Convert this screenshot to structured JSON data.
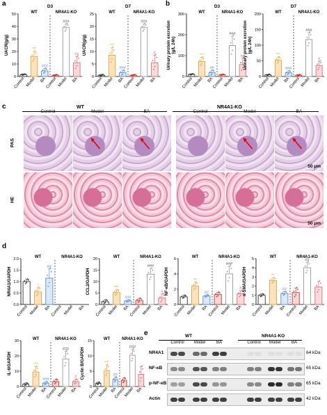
{
  "panels": {
    "a": "a",
    "b": "b",
    "c": "c",
    "d": "d",
    "e": "e"
  },
  "colors": {
    "control": "#333333",
    "model": "#E8A33D",
    "ba": "#5B8FD6",
    "ko_control": "#C0392B",
    "ko_model": "#999999",
    "ko_ba": "#E06C73"
  },
  "chart_data": [
    {
      "id": "a-D3",
      "type": "bar",
      "title": "D3",
      "ylabel": "UACR(g/g)",
      "ylim": [
        0,
        50
      ],
      "yticks": [
        0,
        10,
        20,
        30,
        40,
        50
      ],
      "groups": [
        "WT",
        "NR4A1-KO"
      ],
      "categories": [
        "Control",
        "Model",
        "BA",
        "Control",
        "Model",
        "BA"
      ],
      "values": [
        1.5,
        16,
        4.5,
        1,
        39,
        11
      ],
      "errors": [
        0.5,
        4,
        2,
        0.5,
        3,
        5
      ],
      "annotations": [
        "",
        "***",
        "###",
        "",
        "###",
        "ns"
      ],
      "annot2": [
        "",
        "",
        "*",
        "",
        "",
        ""
      ]
    },
    {
      "id": "a-D7",
      "type": "bar",
      "title": "D7",
      "ylabel": "UACR(g/g)",
      "ylim": [
        0,
        25
      ],
      "yticks": [
        0,
        5,
        10,
        15,
        20,
        25
      ],
      "groups": [
        "WT",
        "NR4A1-KO"
      ],
      "categories": [
        "Control",
        "Model",
        "BA",
        "Control",
        "Model",
        "BA"
      ],
      "values": [
        0.5,
        8.5,
        1.5,
        0.5,
        19.5,
        5.5
      ],
      "errors": [
        0.3,
        3,
        1,
        0.3,
        1.5,
        3
      ],
      "annotations": [
        "",
        "***",
        "###",
        "",
        "###",
        "#"
      ]
    },
    {
      "id": "b-D3",
      "type": "bar",
      "title": "D3",
      "ylabel": "Urinary protein excretion (g/L 24h)",
      "ylim": [
        0,
        300
      ],
      "yticks": [
        0,
        100,
        200,
        300
      ],
      "groups": [
        "WT",
        "NR4A1-KO"
      ],
      "categories": [
        "Control",
        "Model",
        "BA",
        "Control",
        "Model",
        "BA"
      ],
      "values": [
        10,
        72,
        18,
        8,
        148,
        57
      ],
      "errors": [
        3,
        20,
        12,
        3,
        45,
        30
      ],
      "annotations": [
        "",
        "***",
        "##",
        "",
        "###",
        "ns"
      ]
    },
    {
      "id": "b-D7",
      "type": "bar",
      "title": "D7",
      "ylabel": "Urinary protein excretion (g/L 24h)",
      "ylim": [
        0,
        200
      ],
      "yticks": [
        0,
        50,
        100,
        150,
        200
      ],
      "groups": [
        "WT",
        "NR4A1-KO"
      ],
      "categories": [
        "Control",
        "Model",
        "BA",
        "Control",
        "Model",
        "BA"
      ],
      "values": [
        5,
        52,
        12,
        4,
        118,
        35
      ],
      "errors": [
        2,
        10,
        6,
        2,
        22,
        14
      ],
      "annotations": [
        "",
        "***",
        "###",
        "",
        "###",
        "#"
      ]
    },
    {
      "id": "d-NR4A1",
      "type": "bar",
      "ylabel": "NR4A1/GAPDH",
      "ylim": [
        0,
        2.0
      ],
      "yticks": [
        0.0,
        0.5,
        1.0,
        1.5,
        2.0
      ],
      "groups": [
        "WT",
        "NR4A1-KO"
      ],
      "categories": [
        "Control",
        "Model",
        "BA",
        "Control",
        "Model",
        "BA"
      ],
      "values": [
        1.0,
        0.55,
        1.15,
        0,
        0,
        0
      ],
      "errors": [
        0.1,
        0.18,
        0.4,
        0,
        0,
        0
      ],
      "annotations": [
        "",
        "*",
        "##",
        "",
        "",
        ""
      ]
    },
    {
      "id": "d-CCL2",
      "type": "bar",
      "ylabel": "CCL2/GAPDH",
      "ylim": [
        0,
        20
      ],
      "yticks": [
        0,
        5,
        10,
        15,
        20
      ],
      "groups": [
        "WT",
        "NR4A1-KO"
      ],
      "categories": [
        "Control",
        "Model",
        "BA",
        "Control",
        "Model",
        "BA"
      ],
      "values": [
        1.2,
        5.2,
        1.5,
        1.8,
        13.2,
        2.8
      ],
      "errors": [
        0.8,
        1.2,
        0.5,
        0.9,
        2.5,
        1.8
      ],
      "annotations": [
        "",
        "***",
        "###",
        "",
        "###",
        "#"
      ]
    },
    {
      "id": "d-NFkB",
      "type": "bar",
      "ylabel": "NF-κB/GAPDH",
      "ylim": [
        0,
        6
      ],
      "yticks": [
        0,
        2,
        4,
        6
      ],
      "groups": [
        "WT",
        "NR4A1-KO"
      ],
      "categories": [
        "Control",
        "Model",
        "BA",
        "Control",
        "Model",
        "BA"
      ],
      "values": [
        1.0,
        2.4,
        1.1,
        1.3,
        4.0,
        1.4
      ],
      "errors": [
        0.2,
        0.5,
        0.15,
        0.3,
        1.0,
        0.4
      ],
      "annotations": [
        "",
        "**",
        "##",
        "",
        "###",
        "#"
      ]
    },
    {
      "id": "d-aSMA",
      "type": "bar",
      "ylabel": "α-SMA/GAPDH",
      "ylim": [
        0,
        5
      ],
      "yticks": [
        0,
        1,
        2,
        3,
        4,
        5
      ],
      "groups": [
        "WT",
        "NR4A1-KO"
      ],
      "categories": [
        "Control",
        "Model",
        "BA",
        "Control",
        "Model",
        "BA"
      ],
      "values": [
        1.0,
        2.6,
        1.2,
        1.3,
        4.0,
        1.9
      ],
      "errors": [
        0.15,
        0.3,
        0.2,
        0.5,
        0.6,
        0.6
      ],
      "annotations": [
        "",
        "**",
        "##",
        "",
        "##",
        ""
      ]
    },
    {
      "id": "d-IL6",
      "type": "bar",
      "ylabel": "IL-6/GAPDH",
      "ylim": [
        0,
        30
      ],
      "yticks": [
        0,
        10,
        20,
        30
      ],
      "groups": [
        "WT",
        "NR4A1-KO"
      ],
      "categories": [
        "Control",
        "Model",
        "BA",
        "Control",
        "Model",
        "BA"
      ],
      "values": [
        1.5,
        9.5,
        2.2,
        3.2,
        18,
        3.2
      ],
      "errors": [
        0.8,
        3.5,
        1.0,
        1.5,
        5,
        1.5
      ],
      "annotations": [
        "",
        "***",
        "###",
        "",
        "###",
        "#"
      ]
    },
    {
      "id": "d-CyclinB",
      "type": "bar",
      "ylabel": "Cyclin B/GAPDH",
      "ylim": [
        0,
        15
      ],
      "yticks": [
        0,
        5,
        10,
        15
      ],
      "groups": [
        "WT",
        "NR4A1-KO"
      ],
      "categories": [
        "Control",
        "Model",
        "BA",
        "Control",
        "Model",
        "BA"
      ],
      "values": [
        1.0,
        5.2,
        2.3,
        2.0,
        10.2,
        4.0
      ],
      "errors": [
        0.4,
        1.8,
        0.8,
        0.8,
        2.0,
        2.5
      ],
      "annotations": [
        "",
        "***",
        "##",
        "",
        "###",
        ""
      ]
    }
  ],
  "groupLabels": {
    "wt": "WT",
    "ko": "NR4A1-KO",
    "d3": "D3",
    "d7": "D7"
  },
  "microscopy": {
    "stains": [
      "PAS",
      "HE"
    ],
    "columns": [
      "Control",
      "Model",
      "BA",
      "Control",
      "Model",
      "BA"
    ],
    "scalebar": "50 μm"
  },
  "westernBlot": {
    "rows": [
      "NR4A1",
      "NF-κB",
      "p-NF-κB",
      "Actin"
    ],
    "sizes": [
      "64 kDa",
      "65 kDa",
      "65 kDa",
      "42 kDa"
    ],
    "lanes": [
      "Control",
      "Model",
      "BA",
      "Control",
      "Model",
      "BA"
    ],
    "intensities": [
      [
        0.75,
        0.6,
        0.8,
        0.05,
        0.05,
        0.05
      ],
      [
        0.45,
        0.7,
        0.5,
        0.5,
        0.85,
        0.55
      ],
      [
        0.35,
        0.75,
        0.4,
        0.45,
        0.9,
        0.5
      ],
      [
        0.8,
        0.8,
        0.8,
        0.8,
        0.8,
        0.8
      ]
    ]
  }
}
